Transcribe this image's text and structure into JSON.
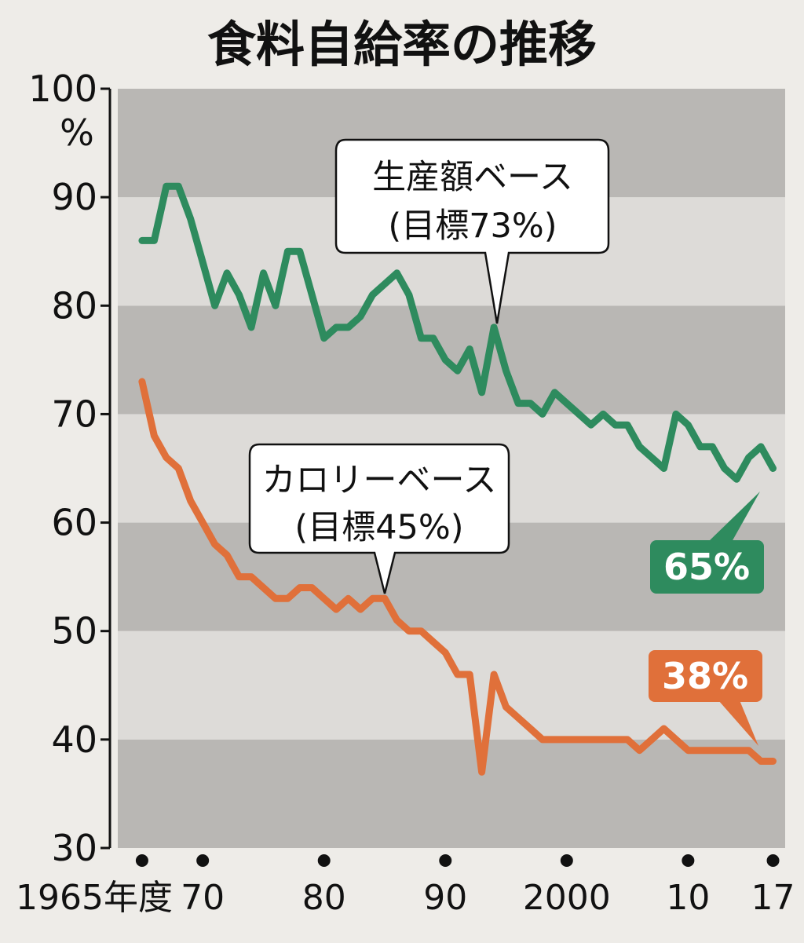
{
  "chart_data": {
    "type": "line",
    "title": "食料自給率の推移",
    "ylabel_unit": "%",
    "ylim": [
      30,
      100
    ],
    "yticks": [
      "100",
      "90",
      "80",
      "70",
      "60",
      "50",
      "40",
      "30"
    ],
    "xlim": [
      1963,
      2018
    ],
    "xticks": [
      {
        "x": 1965,
        "label": "1965年度"
      },
      {
        "x": 1970,
        "label": "70"
      },
      {
        "x": 1980,
        "label": "80"
      },
      {
        "x": 1990,
        "label": "90"
      },
      {
        "x": 2000,
        "label": "2000"
      },
      {
        "x": 2010,
        "label": "10"
      },
      {
        "x": 2017,
        "label": "17"
      }
    ],
    "series": [
      {
        "name": "生産額ベース",
        "target": "(目標73%)",
        "end_label": "65%",
        "color": "#2e8b5e",
        "x": [
          1965,
          1966,
          1967,
          1968,
          1969,
          1970,
          1971,
          1972,
          1973,
          1974,
          1975,
          1976,
          1977,
          1978,
          1979,
          1980,
          1981,
          1982,
          1983,
          1984,
          1985,
          1986,
          1987,
          1988,
          1989,
          1990,
          1991,
          1992,
          1993,
          1994,
          1995,
          1996,
          1997,
          1998,
          1999,
          2000,
          2001,
          2002,
          2003,
          2004,
          2005,
          2006,
          2007,
          2008,
          2009,
          2010,
          2011,
          2012,
          2013,
          2014,
          2015,
          2016,
          2017
        ],
        "y": [
          86,
          86,
          91,
          91,
          88,
          84,
          80,
          83,
          81,
          78,
          83,
          80,
          85,
          85,
          81,
          77,
          78,
          78,
          79,
          81,
          82,
          83,
          81,
          77,
          77,
          75,
          74,
          76,
          72,
          78,
          74,
          71,
          71,
          70,
          72,
          71,
          70,
          69,
          70,
          69,
          69,
          67,
          66,
          65,
          70,
          69,
          67,
          67,
          65,
          64,
          66,
          67,
          65
        ]
      },
      {
        "name": "カロリーベース",
        "target": "(目標45%)",
        "end_label": "38%",
        "color": "#e0703a",
        "x": [
          1965,
          1966,
          1967,
          1968,
          1969,
          1970,
          1971,
          1972,
          1973,
          1974,
          1975,
          1976,
          1977,
          1978,
          1979,
          1980,
          1981,
          1982,
          1983,
          1984,
          1985,
          1986,
          1987,
          1988,
          1989,
          1990,
          1991,
          1992,
          1993,
          1994,
          1995,
          1996,
          1997,
          1998,
          1999,
          2000,
          2001,
          2002,
          2003,
          2004,
          2005,
          2006,
          2007,
          2008,
          2009,
          2010,
          2011,
          2012,
          2013,
          2014,
          2015,
          2016,
          2017
        ],
        "y": [
          73,
          68,
          66,
          65,
          62,
          60,
          58,
          57,
          55,
          55,
          54,
          53,
          53,
          54,
          54,
          53,
          52,
          53,
          52,
          53,
          53,
          51,
          50,
          50,
          49,
          48,
          46,
          46,
          37,
          46,
          43,
          42,
          41,
          40,
          40,
          40,
          40,
          40,
          40,
          40,
          40,
          39,
          40,
          41,
          40,
          39,
          39,
          39,
          39,
          39,
          39,
          38,
          38
        ]
      }
    ],
    "grid": "alternating horizontal bands"
  }
}
